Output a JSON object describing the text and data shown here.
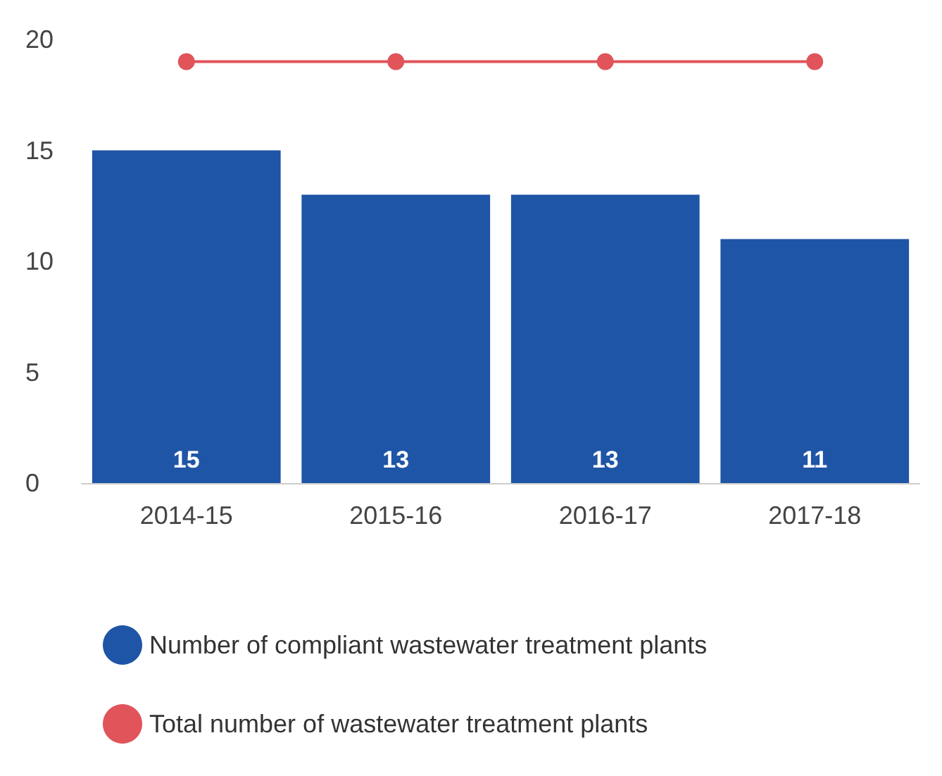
{
  "chart_data": {
    "type": "bar",
    "categories": [
      "2014-15",
      "2015-16",
      "2016-17",
      "2017-18"
    ],
    "series": [
      {
        "name": "Number of compliant wastewater treatment plants",
        "color": "#1f55a6",
        "values": [
          15,
          13,
          13,
          11
        ],
        "value_labels": [
          "15",
          "13",
          "13",
          "11"
        ]
      },
      {
        "name": "Total number of wastewater treatment plants",
        "type": "line",
        "color": "#e0545a",
        "values": [
          19,
          19,
          19,
          19
        ]
      }
    ],
    "ylim": [
      0,
      20
    ],
    "yticks": [
      0,
      5,
      10,
      15,
      20
    ],
    "grid": false,
    "legend": "bottom",
    "marker": "circle",
    "line_style": "solid"
  }
}
